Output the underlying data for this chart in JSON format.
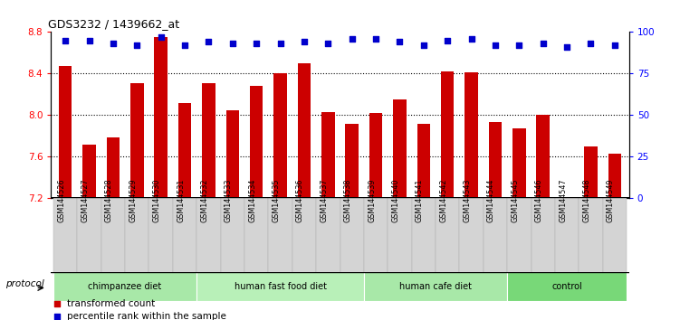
{
  "title": "GDS3232 / 1439662_at",
  "samples": [
    "GSM144526",
    "GSM144527",
    "GSM144528",
    "GSM144529",
    "GSM144530",
    "GSM144531",
    "GSM144532",
    "GSM144533",
    "GSM144534",
    "GSM144535",
    "GSM144536",
    "GSM144537",
    "GSM144538",
    "GSM144539",
    "GSM144540",
    "GSM144541",
    "GSM144542",
    "GSM144543",
    "GSM144544",
    "GSM144545",
    "GSM144546",
    "GSM144547",
    "GSM144548",
    "GSM144549"
  ],
  "bar_values": [
    8.47,
    7.72,
    7.79,
    8.31,
    8.75,
    8.12,
    8.31,
    8.05,
    8.28,
    8.4,
    8.5,
    8.03,
    7.92,
    8.02,
    8.15,
    7.92,
    8.42,
    8.41,
    7.93,
    7.87,
    8.0,
    7.2,
    7.7,
    7.63
  ],
  "percentile_values": [
    95,
    95,
    93,
    92,
    97,
    92,
    94,
    93,
    93,
    93,
    94,
    93,
    96,
    96,
    94,
    92,
    95,
    96,
    92,
    92,
    93,
    91,
    93,
    92
  ],
  "bar_color": "#cc0000",
  "percentile_color": "#0000cc",
  "ylim_left": [
    7.2,
    8.8
  ],
  "ylim_right": [
    0,
    100
  ],
  "yticks_left": [
    7.2,
    7.6,
    8.0,
    8.4,
    8.8
  ],
  "yticks_right": [
    0,
    25,
    50,
    75,
    100
  ],
  "grid_values": [
    7.6,
    8.0,
    8.4
  ],
  "groups": [
    {
      "label": "chimpanzee diet",
      "start": 0,
      "end": 6,
      "color": "#a8e8a8"
    },
    {
      "label": "human fast food diet",
      "start": 6,
      "end": 13,
      "color": "#b8f0b8"
    },
    {
      "label": "human cafe diet",
      "start": 13,
      "end": 19,
      "color": "#a8e8a8"
    },
    {
      "label": "control",
      "start": 19,
      "end": 24,
      "color": "#78d878"
    }
  ],
  "legend_items": [
    {
      "label": "transformed count",
      "color": "#cc0000"
    },
    {
      "label": "percentile rank within the sample",
      "color": "#0000cc"
    }
  ],
  "protocol_label": "protocol",
  "background_color": "#ffffff"
}
